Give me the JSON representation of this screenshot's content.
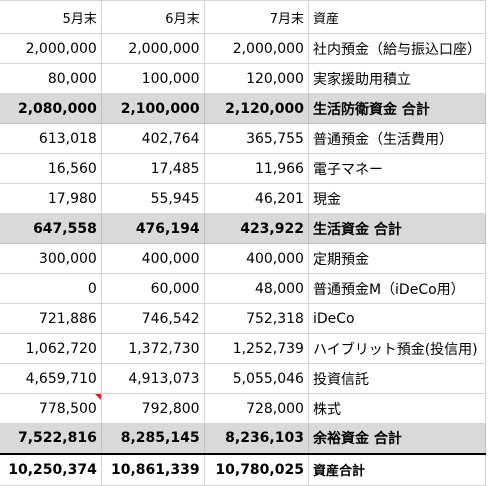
{
  "header": {
    "may": "5月末",
    "june": "6月末",
    "july": "7月末",
    "asset": "資産"
  },
  "rows": [
    {
      "may": "2,000,000",
      "june": "2,000,000",
      "july": "2,000,000",
      "label": "社内預金（給与振込口座）"
    },
    {
      "may": "80,000",
      "june": "100,000",
      "july": "120,000",
      "label": "実家援助用積立"
    },
    {
      "may": "2,080,000",
      "june": "2,100,000",
      "july": "2,120,000",
      "label": "生活防衛資金 合計"
    },
    {
      "may": "613,018",
      "june": "402,764",
      "july": "365,755",
      "label": "普通預金（生活費用）"
    },
    {
      "may": "16,560",
      "june": "17,485",
      "july": "11,966",
      "label": "電子マネー"
    },
    {
      "may": "17,980",
      "june": "55,945",
      "july": "46,201",
      "label": "現金"
    },
    {
      "may": "647,558",
      "june": "476,194",
      "july": "423,922",
      "label": "生活資金 合計"
    },
    {
      "may": "300,000",
      "june": "400,000",
      "july": "400,000",
      "label": "定期預金"
    },
    {
      "may": "0",
      "june": "60,000",
      "july": "48,000",
      "label": "普通預金M（iDeCo用）"
    },
    {
      "may": "721,886",
      "june": "746,542",
      "july": "752,318",
      "label": "iDeCo"
    },
    {
      "may": "1,062,720",
      "june": "1,372,730",
      "july": "1,252,739",
      "label": "ハイブリット預金(投信用)"
    },
    {
      "may": "4,659,710",
      "june": "4,913,073",
      "july": "5,055,046",
      "label": "投資信託"
    },
    {
      "may": "778,500",
      "june": "792,800",
      "july": "728,000",
      "label": "株式"
    },
    {
      "may": "7,522,816",
      "june": "8,285,145",
      "july": "8,236,103",
      "label": "余裕資金 合計"
    },
    {
      "may": "10,250,374",
      "june": "10,861,339",
      "july": "10,780,025",
      "label": "資産合計"
    }
  ],
  "colors": {
    "subtotal_bg": "#d9d9d9",
    "grid": "#d4d4d4",
    "comment_marker": "#e11b1b"
  }
}
